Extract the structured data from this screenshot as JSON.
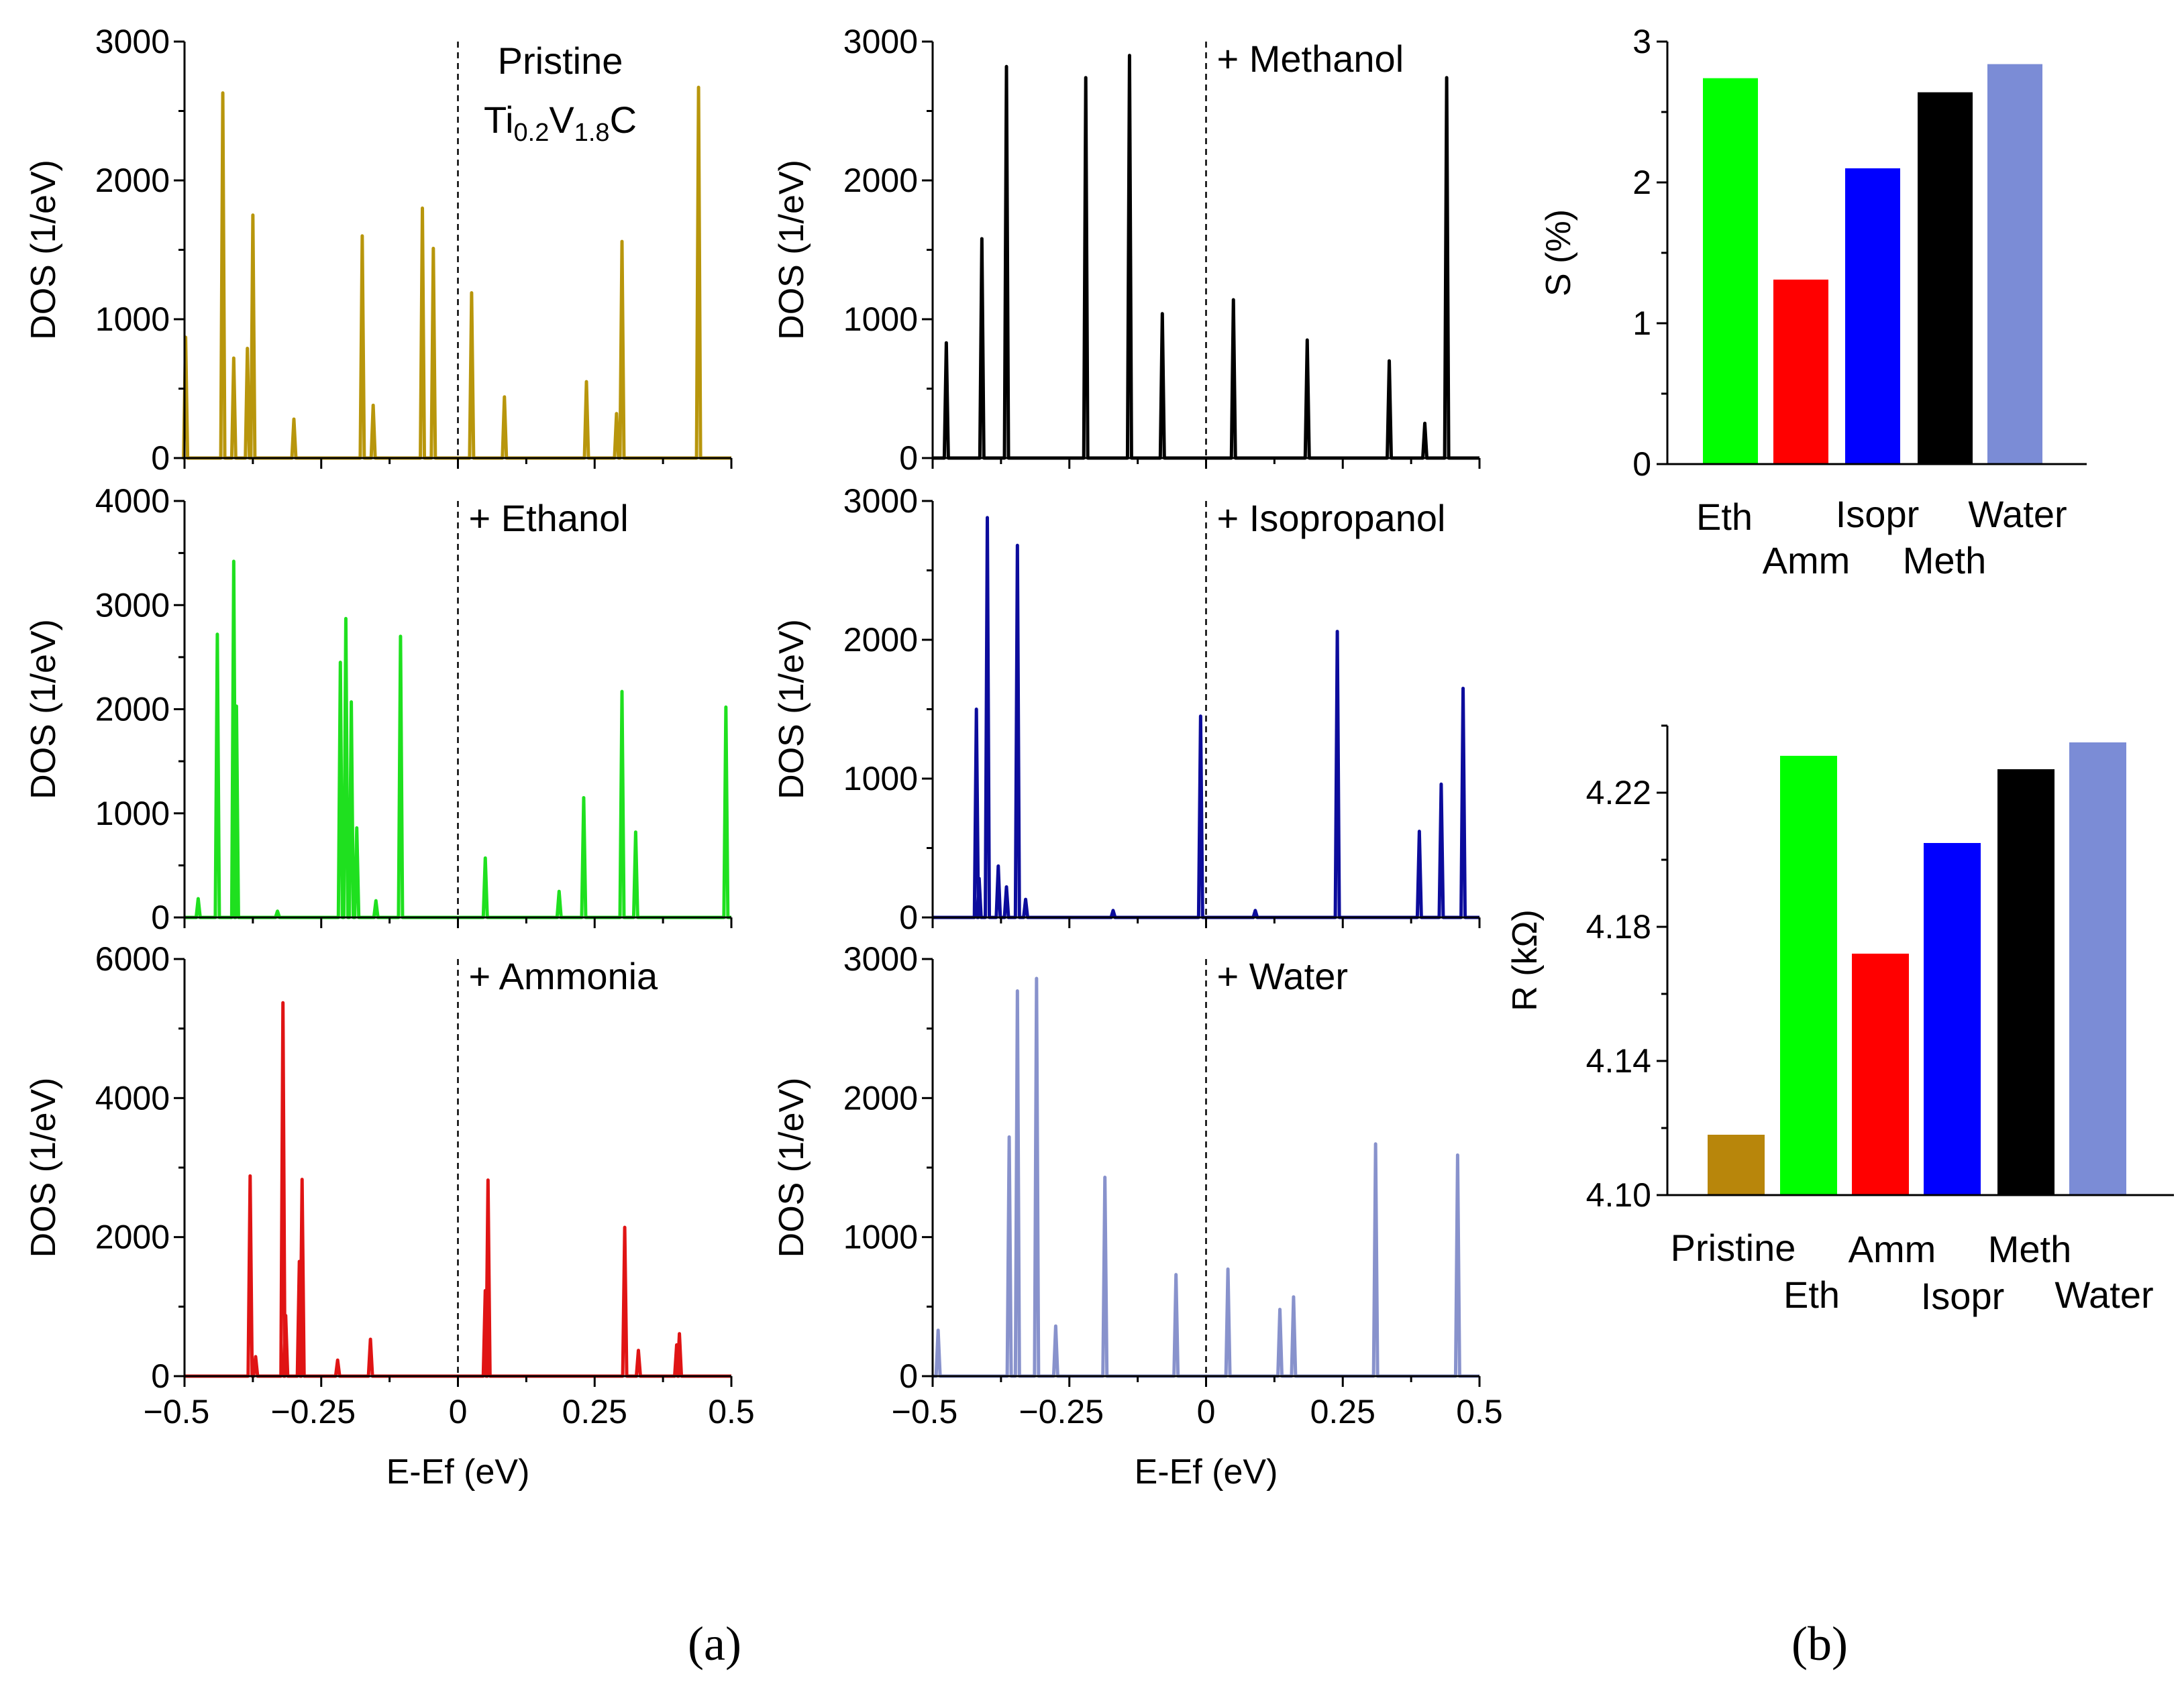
{
  "figure": {
    "panel_a_label": "(a)",
    "panel_b_label": "(b)"
  },
  "colors": {
    "pristine": "#b8960c",
    "ethanol": "#1fe01f",
    "ammonia": "#e01414",
    "methanol": "#000000",
    "isopropanol": "#0c0c9c",
    "water": "#8892cc",
    "bar_eth": "#00ff00",
    "bar_amm": "#ff0000",
    "bar_isopr": "#0000ff",
    "bar_meth": "#000000",
    "bar_water": "#7b8cd6",
    "bar_pristine": "#b8860b",
    "label_pristine": "#a07030",
    "label_eth": "#118877",
    "label_amm": "#ff1010",
    "label_isopr": "#1010ee",
    "label_meth": "#000000",
    "label_water": "#8fa0e0"
  },
  "chart_data": [
    {
      "type": "line",
      "id": "dos_pristine",
      "title_line1": "Pristine",
      "title_formula": {
        "t1": "Ti",
        "s1": "0.2",
        "t2": "V",
        "s2": "1.8",
        "t3": "C"
      },
      "ylabel": "DOS (1/eV)",
      "xlabel": "",
      "xlim": [
        -0.5,
        0.5
      ],
      "ylim": [
        0,
        3000
      ],
      "yticks": [
        "0",
        "1000",
        "2000",
        "3000"
      ],
      "peaks": [
        [
          -0.498,
          870
        ],
        [
          -0.43,
          2630
        ],
        [
          -0.41,
          720
        ],
        [
          -0.385,
          790
        ],
        [
          -0.375,
          1750
        ],
        [
          -0.3,
          280
        ],
        [
          -0.175,
          1600
        ],
        [
          -0.155,
          380
        ],
        [
          -0.065,
          1800
        ],
        [
          -0.045,
          1510
        ],
        [
          0.025,
          1190
        ],
        [
          0.085,
          440
        ],
        [
          0.235,
          550
        ],
        [
          0.29,
          320
        ],
        [
          0.3,
          1560
        ],
        [
          0.44,
          2670
        ]
      ]
    },
    {
      "type": "line",
      "id": "dos_ethanol",
      "title": "+ Ethanol",
      "ylabel": "DOS (1/eV)",
      "xlabel": "",
      "xlim": [
        -0.5,
        0.5
      ],
      "ylim": [
        0,
        4000
      ],
      "yticks": [
        "0",
        "1000",
        "2000",
        "3000",
        "4000"
      ],
      "peaks": [
        [
          -0.475,
          180
        ],
        [
          -0.44,
          2720
        ],
        [
          -0.41,
          3420
        ],
        [
          -0.405,
          2030
        ],
        [
          -0.33,
          60
        ],
        [
          -0.215,
          2450
        ],
        [
          -0.205,
          2870
        ],
        [
          -0.195,
          2070
        ],
        [
          -0.185,
          860
        ],
        [
          -0.15,
          160
        ],
        [
          -0.105,
          2700
        ],
        [
          0.05,
          570
        ],
        [
          0.185,
          250
        ],
        [
          0.23,
          1150
        ],
        [
          0.3,
          2170
        ],
        [
          0.325,
          820
        ],
        [
          0.49,
          2020
        ]
      ]
    },
    {
      "type": "line",
      "id": "dos_ammonia",
      "title": "+ Ammonia",
      "ylabel": "DOS (1/eV)",
      "xlabel": "E-Ef (eV)",
      "xlim": [
        -0.5,
        0.5
      ],
      "ylim": [
        0,
        6000
      ],
      "yticks": [
        "0",
        "2000",
        "4000",
        "6000"
      ],
      "xticks": [
        "−0.5",
        "−0.25",
        "0",
        "0.25",
        "0.5"
      ],
      "peaks": [
        [
          -0.38,
          2880
        ],
        [
          -0.37,
          280
        ],
        [
          -0.32,
          5370
        ],
        [
          -0.315,
          870
        ],
        [
          -0.29,
          1650
        ],
        [
          -0.285,
          2830
        ],
        [
          -0.22,
          230
        ],
        [
          -0.16,
          530
        ],
        [
          0.05,
          1230
        ],
        [
          0.055,
          2820
        ],
        [
          0.305,
          2140
        ],
        [
          0.33,
          370
        ],
        [
          0.4,
          450
        ],
        [
          0.405,
          610
        ]
      ]
    },
    {
      "type": "line",
      "id": "dos_methanol",
      "title": "+ Methanol",
      "ylabel": "DOS (1/eV)",
      "xlabel": "",
      "xlim": [
        -0.5,
        0.5
      ],
      "ylim": [
        0,
        3000
      ],
      "yticks": [
        "0",
        "1000",
        "2000",
        "3000"
      ],
      "peaks": [
        [
          -0.475,
          830
        ],
        [
          -0.41,
          1580
        ],
        [
          -0.365,
          2820
        ],
        [
          -0.22,
          2740
        ],
        [
          -0.14,
          2900
        ],
        [
          -0.08,
          1040
        ],
        [
          0.05,
          1140
        ],
        [
          0.185,
          850
        ],
        [
          0.335,
          700
        ],
        [
          0.4,
          250
        ],
        [
          0.44,
          2740
        ]
      ]
    },
    {
      "type": "line",
      "id": "dos_isopropanol",
      "title": "+ Isopropanol",
      "ylabel": "DOS (1/eV)",
      "xlabel": "",
      "xlim": [
        -0.5,
        0.5
      ],
      "ylim": [
        0,
        3000
      ],
      "yticks": [
        "0",
        "1000",
        "2000",
        "3000"
      ],
      "peaks": [
        [
          -0.42,
          1500
        ],
        [
          -0.415,
          280
        ],
        [
          -0.4,
          2880
        ],
        [
          -0.38,
          370
        ],
        [
          -0.365,
          220
        ],
        [
          -0.345,
          2680
        ],
        [
          -0.33,
          130
        ],
        [
          -0.17,
          50
        ],
        [
          -0.01,
          1450
        ],
        [
          0.09,
          50
        ],
        [
          0.24,
          2060
        ],
        [
          0.39,
          620
        ],
        [
          0.43,
          960
        ],
        [
          0.47,
          1650
        ]
      ]
    },
    {
      "type": "line",
      "id": "dos_water",
      "title": "+ Water",
      "ylabel": "DOS (1/eV)",
      "xlabel": "E-Ef (eV)",
      "xlim": [
        -0.5,
        0.5
      ],
      "ylim": [
        0,
        3000
      ],
      "yticks": [
        "0",
        "1000",
        "2000",
        "3000"
      ],
      "xticks": [
        "−0.5",
        "−0.25",
        "0",
        "0.25",
        "0.5"
      ],
      "peaks": [
        [
          -0.49,
          330
        ],
        [
          -0.36,
          1720
        ],
        [
          -0.345,
          2770
        ],
        [
          -0.31,
          2860
        ],
        [
          -0.275,
          360
        ],
        [
          -0.185,
          1430
        ],
        [
          -0.055,
          730
        ],
        [
          0.04,
          770
        ],
        [
          0.135,
          480
        ],
        [
          0.16,
          570
        ],
        [
          0.31,
          1670
        ],
        [
          0.46,
          1590
        ]
      ]
    },
    {
      "type": "bar",
      "id": "sensitivity",
      "ylabel": "S (%)",
      "ylim": [
        0,
        3
      ],
      "yticks": [
        "0",
        "1",
        "2",
        "3"
      ],
      "categories": [
        "Eth",
        "Amm",
        "Isopr",
        "Meth",
        "Water"
      ],
      "values": [
        2.74,
        1.31,
        2.1,
        2.64,
        2.84
      ]
    },
    {
      "type": "bar",
      "id": "resistance",
      "ylabel": "R (kΩ)",
      "ylim": [
        4.1,
        4.24
      ],
      "yticks": [
        "4.10",
        "4.14",
        "4.18",
        "4.22"
      ],
      "categories": [
        "Pristine",
        "Eth",
        "Amm",
        "Isopr",
        "Meth",
        "Water"
      ],
      "values": [
        4.118,
        4.231,
        4.172,
        4.205,
        4.227,
        4.235
      ]
    }
  ]
}
